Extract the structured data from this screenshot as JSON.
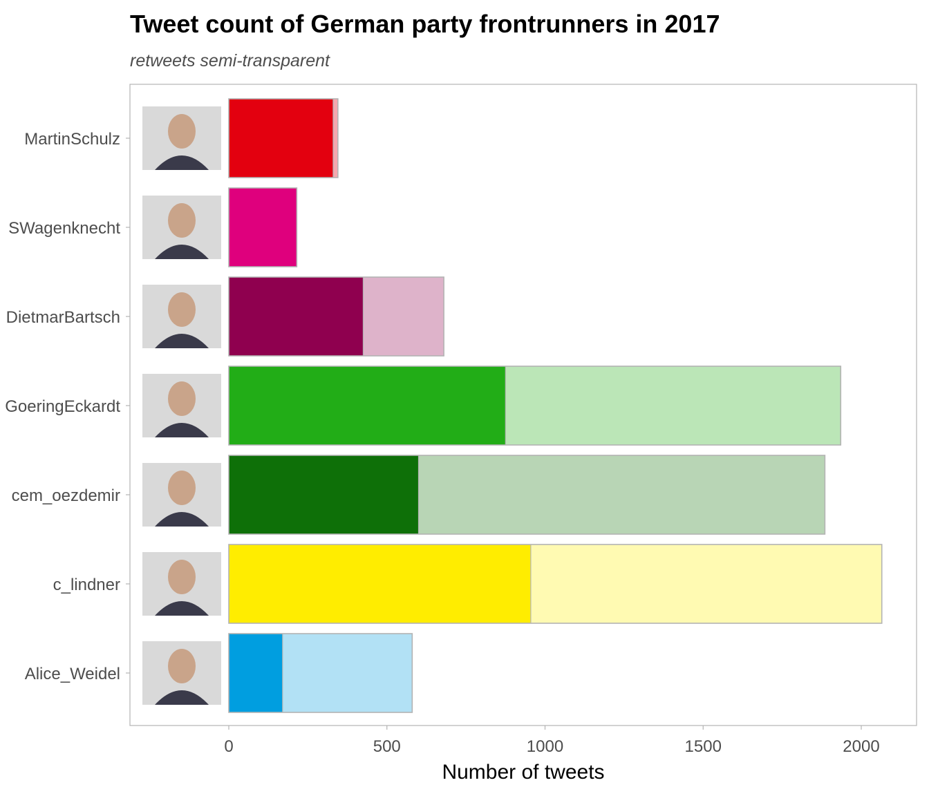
{
  "title": "Tweet count of German party frontrunners in 2017",
  "subtitle": "retweets semi-transparent",
  "chart_data": {
    "type": "bar",
    "orientation": "horizontal",
    "stacked": true,
    "title": "Tweet count of German party frontrunners in 2017",
    "subtitle": "retweets semi-transparent",
    "xlabel": "Number of tweets",
    "ylabel": "",
    "xlim": [
      0,
      2100
    ],
    "xticks": [
      0,
      500,
      1000,
      1500,
      2000
    ],
    "grid": false,
    "categories": [
      "MartinSchulz",
      "SWagenknecht",
      "DietmarBartsch",
      "GoeringEckardt",
      "cem_oezdemir",
      "c_lindner",
      "Alice_Weidel"
    ],
    "series": [
      {
        "values": [
          330,
          215,
          425,
          875,
          600,
          955,
          170
        ]
      },
      {
        "values": [
          15,
          0,
          255,
          1060,
          1285,
          1110,
          410
        ]
      }
    ],
    "colors": [
      "#e3000f",
      "#df007d",
      "#8f004f",
      "#22ad17",
      "#0e7008",
      "#ffed00",
      "#009ee0"
    ],
    "retweet_colors": [
      "#f5a8ae",
      "#f5a8d2",
      "#deb3ca",
      "#bbe6b7",
      "#b8d5b5",
      "#fffab2",
      "#b2e1f5"
    ],
    "images": [
      "photo-martin-schulz",
      "photo-sahra-wagenknecht",
      "photo-dietmar-bartsch",
      "photo-katrin-goering-eckardt",
      "photo-cem-oezdemir",
      "photo-christian-lindner",
      "photo-alice-weidel"
    ]
  }
}
